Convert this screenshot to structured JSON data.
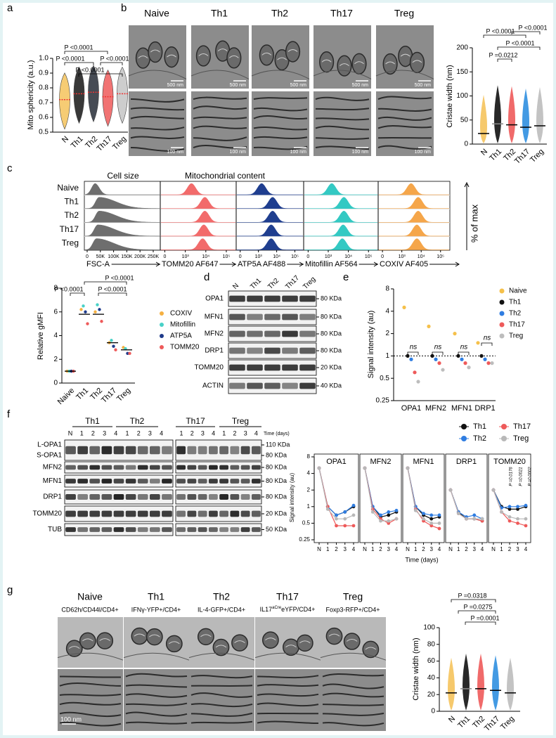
{
  "panel_a": {
    "label": "a",
    "ylabel": "Mito sphericity (a.u.)",
    "categories": [
      "N",
      "Th1",
      "Th2",
      "Th17",
      "Treg"
    ],
    "colors": [
      "#f5c35c",
      "#151515",
      "#262b36",
      "#ee5a5a",
      "#c4c4c4"
    ],
    "medians": [
      0.72,
      0.76,
      0.77,
      0.74,
      0.76
    ],
    "ylim": [
      0.5,
      1
    ],
    "yticks": [
      0.5,
      0.6,
      0.7,
      0.8,
      0.9,
      {
        "value": 1,
        "label": "1.0"
      }
    ],
    "pvalues": [
      "P <0.0001",
      "P <0.0001",
      "P <0.0001",
      "P <0.0001"
    ]
  },
  "panel_b": {
    "label": "b",
    "columns": [
      "Naive",
      "Th1",
      "Th2",
      "Th17",
      "Treg"
    ],
    "scale_top": [
      "500 nm",
      "500 nm",
      "500 nm",
      "500 nm",
      "500 nm"
    ],
    "scale_bottom": [
      "100 nm",
      "100 nm",
      "100 nm",
      "100 nm",
      "100 nm"
    ],
    "chart": {
      "ylabel": "Cristae width (nm)",
      "categories": [
        "N",
        "Th1",
        "Th2",
        "Th17",
        "Treg"
      ],
      "colors": [
        "#f5c35c",
        "#111111",
        "#ee5a5a",
        "#2f8fe0",
        "#bdbdbd"
      ],
      "means": [
        22,
        42,
        40,
        35,
        38
      ],
      "ylim": [
        0,
        200
      ],
      "yticks": [
        0,
        50,
        100,
        150,
        200
      ],
      "pvalues": [
        "P <0.0001",
        "P <0.0001",
        "P <0.0001",
        "P =0.0212"
      ]
    }
  },
  "panel_c": {
    "label": "c",
    "headings": [
      "Cell size",
      "Mitochondrial content"
    ],
    "rows": [
      "Naive",
      "Th1",
      "Th2",
      "Th17",
      "Treg"
    ],
    "ylabel": "% of max",
    "channels": [
      {
        "label": "FSC-A",
        "color": "#6e6e6e",
        "ticks": [
          0,
          {
            "value": 50000,
            "label": "50K"
          },
          {
            "value": 100000,
            "label": "100K"
          },
          {
            "value": 150000,
            "label": "150K"
          },
          {
            "value": 200000,
            "label": "200K"
          },
          {
            "value": 250000,
            "label": "250K"
          }
        ],
        "peaks": [
          30000,
          45000,
          45000,
          40000,
          35000
        ]
      },
      {
        "label": "TOMM20 AF647",
        "color": "#f26b6b",
        "ticks": [
          0,
          {
            "value": 1000,
            "label": "10³"
          },
          {
            "value": 10000,
            "label": "10⁴"
          },
          {
            "value": 100000,
            "label": "10⁵"
          }
        ],
        "peaks": [
          2000,
          9000,
          9000,
          8000,
          7000
        ]
      },
      {
        "label": "ATP5A AF488",
        "color": "#1f3e8f",
        "ticks": [
          0,
          {
            "value": 1000,
            "label": "10³"
          },
          {
            "value": 10000,
            "label": "10⁴"
          },
          {
            "value": 100000,
            "label": "10⁵"
          }
        ],
        "peaks": [
          1500,
          6000,
          6000,
          5000,
          5000
        ]
      },
      {
        "label": "Mitofillin AF564",
        "color": "#33c9c3",
        "ticks": [
          0,
          {
            "value": 1000,
            "label": "10³"
          },
          {
            "value": 10000,
            "label": "10⁴"
          },
          {
            "value": 100000,
            "label": "10⁵"
          }
        ],
        "peaks": [
          1500,
          6000,
          6000,
          5500,
          5000
        ]
      },
      {
        "label": "COXIV AF405",
        "color": "#f5a64a",
        "ticks": [
          0,
          {
            "value": 1000,
            "label": "10³"
          },
          {
            "value": 10000,
            "label": "10⁴"
          },
          {
            "value": 100000,
            "label": "10⁵"
          }
        ],
        "peaks": [
          3000,
          7000,
          7000,
          6000,
          6000
        ]
      }
    ],
    "gmfi": {
      "ylabel": "Relative gMFI",
      "categories": [
        "Naive",
        "Th1",
        "Th2",
        "Th17",
        "Treg"
      ],
      "series": [
        {
          "name": "COXIV",
          "color": "#f5b041",
          "values": [
            1,
            6.2,
            6,
            3.4,
            3
          ]
        },
        {
          "name": "Mitofillin",
          "color": "#48d1c7",
          "values": [
            1,
            6.5,
            6.6,
            3.6,
            2.9
          ]
        },
        {
          "name": "ATP5A",
          "color": "#1e3a8a",
          "values": [
            1,
            6,
            6.2,
            3.1,
            2.5
          ]
        },
        {
          "name": "TOMM20",
          "color": "#ee5a5a",
          "values": [
            1,
            5,
            5.2,
            2.8,
            2.5
          ]
        }
      ],
      "means": [
        1,
        5.8,
        5.8,
        3.4,
        2.8
      ],
      "ylim": [
        0,
        8
      ],
      "yticks": [
        0,
        2,
        4,
        6,
        8
      ],
      "pvalues": [
        "P <0.0001",
        "P <0.0001",
        "P <0.0001"
      ]
    }
  },
  "panel_d": {
    "label": "d",
    "lanes": [
      "N",
      "Th1",
      "Th2",
      "Th17",
      "Treg"
    ],
    "bands": [
      "OPA1",
      "MFN1",
      "MFN2",
      "DRP1",
      "TOMM20",
      "ACTIN"
    ],
    "sizes": [
      "80 KDa",
      "80 KDa",
      "80 KDa",
      "80 KDa",
      "20 KDa",
      "40 KDa"
    ]
  },
  "panel_e": {
    "label": "e",
    "ylabel": "Signal intensity (au)",
    "categories": [
      "OPA1",
      "MFN2",
      "MFN1",
      "DRP1"
    ],
    "log": true,
    "ylim": [
      0.25,
      8
    ],
    "yticks": [
      0.25,
      0.5,
      1,
      2,
      4,
      8
    ],
    "ns": [
      "ns",
      "ns",
      "ns",
      "ns"
    ],
    "series": [
      {
        "name": "Naive",
        "color": "#f5c04a",
        "values": [
          4.5,
          2.5,
          2,
          1.5
        ]
      },
      {
        "name": "Th1",
        "color": "#111111",
        "values": [
          1,
          1,
          1,
          1
        ]
      },
      {
        "name": "Th2",
        "color": "#2f7de1",
        "values": [
          0.9,
          0.9,
          0.9,
          0.9
        ]
      },
      {
        "name": "Th17",
        "color": "#ee5a5a",
        "values": [
          0.6,
          0.8,
          0.8,
          0.8
        ]
      },
      {
        "name": "Treg",
        "color": "#bdbdbd",
        "values": [
          0.45,
          0.65,
          0.7,
          0.8
        ]
      }
    ]
  },
  "panel_f": {
    "label": "f",
    "groups": [
      "Th1",
      "Th2",
      "Th17",
      "Treg"
    ],
    "lanes_left": [
      "N",
      "1",
      "2",
      "3",
      "4",
      "1",
      "2",
      "3",
      "4"
    ],
    "lanes_right": [
      "1",
      "2",
      "3",
      "4",
      "1",
      "2",
      "3",
      "4"
    ],
    "time_label": "Time (days)",
    "bands": [
      "L-OPA1",
      "S-OPA1",
      "MFN2",
      "MFN1",
      "DRP1",
      "TOMM20",
      "TUB"
    ],
    "sizes": [
      "110 KDa",
      "80 KDa",
      "80 KDa",
      "80 KDa",
      "80 KDa",
      "20 KDa",
      "50 KDa"
    ],
    "lines": {
      "ylabel": "Signal intensity (au)",
      "xlabel": "Time (days)",
      "x": [
        "N",
        "1",
        "2",
        "3",
        "4"
      ],
      "log": true,
      "ylim": [
        0.25,
        8
      ],
      "yticks": [
        0.25,
        0.5,
        1,
        2,
        4,
        8
      ],
      "series": [
        {
          "name": "Th1",
          "color": "#111111"
        },
        {
          "name": "Th2",
          "color": "#2f7de1"
        },
        {
          "name": "Th17",
          "color": "#ee5a5a"
        },
        {
          "name": "Treg",
          "color": "#b8b8b8"
        }
      ],
      "panels": [
        {
          "title": "OPA1",
          "values": [
            [
              5,
              1,
              0.7,
              0.8,
              1
            ],
            [
              5,
              1,
              0.7,
              0.8,
              1.05
            ],
            [
              5,
              1,
              0.45,
              0.45,
              0.45
            ],
            [
              5,
              0.9,
              0.6,
              0.6,
              0.7
            ]
          ]
        },
        {
          "title": "MFN2",
          "values": [
            [
              5,
              1,
              0.65,
              0.7,
              0.8
            ],
            [
              5,
              1,
              0.7,
              0.8,
              0.85
            ],
            [
              5,
              0.9,
              0.6,
              0.5,
              0.6
            ],
            [
              5,
              0.8,
              0.55,
              0.55,
              0.6
            ]
          ]
        },
        {
          "title": "MFN1",
          "values": [
            [
              5,
              1,
              0.7,
              0.6,
              0.65
            ],
            [
              5,
              1,
              0.75,
              0.7,
              0.7
            ],
            [
              5,
              0.9,
              0.55,
              0.45,
              0.4
            ],
            [
              5,
              0.85,
              0.6,
              0.5,
              0.5
            ]
          ]
        },
        {
          "title": "DRP1",
          "values": [
            [
              2,
              0.8,
              0.6,
              0.6,
              0.55
            ],
            [
              2,
              0.8,
              0.65,
              0.7,
              0.6
            ],
            [
              2,
              0.75,
              0.6,
              0.6,
              0.55
            ],
            [
              2,
              0.75,
              0.6,
              0.6,
              0.6
            ]
          ]
        },
        {
          "title": "TOMM20",
          "values": [
            [
              2,
              1,
              0.9,
              0.9,
              1
            ],
            [
              2,
              0.95,
              1,
              1,
              1.05
            ],
            [
              2,
              0.8,
              0.55,
              0.5,
              0.45
            ],
            [
              2,
              0.8,
              0.65,
              0.6,
              0.6
            ]
          ]
        }
      ],
      "pvalues": [
        "P =0.0176",
        "P =0.0021",
        "P =0.0002"
      ]
    }
  },
  "panel_g": {
    "label": "g",
    "columns": [
      {
        "title": "Naive",
        "subtitle": "CD62h/CD44l/CD4+"
      },
      {
        "title": "Th1",
        "subtitle": "IFNγ-YFP+/CD4+"
      },
      {
        "title": "Th2",
        "subtitle": "IL-4-GFP+/CD4+"
      },
      {
        "title": "Th17",
        "subtitle": {
          "main": "IL17",
          "sup": "aCre",
          "rest": "eYFP/CD4+"
        }
      },
      {
        "title": "Treg",
        "subtitle": "Foxp3-RFP+/CD4+"
      }
    ],
    "scale_bar": "100 nm",
    "chart": {
      "ylabel": "Cristae width (nm)",
      "categories": [
        "N",
        "Th1",
        "Th2",
        "Th17",
        "Treg"
      ],
      "colors": [
        "#f5c35c",
        "#111111",
        "#ee5a5a",
        "#2f8fe0",
        "#bdbdbd"
      ],
      "means": [
        22,
        27,
        27,
        25,
        22
      ],
      "ylim": [
        0,
        100
      ],
      "yticks": [
        0,
        20,
        40,
        60,
        80,
        100
      ],
      "pvalues": [
        "P =0.0318",
        "P =0.0275",
        "P =0.0001"
      ]
    }
  }
}
